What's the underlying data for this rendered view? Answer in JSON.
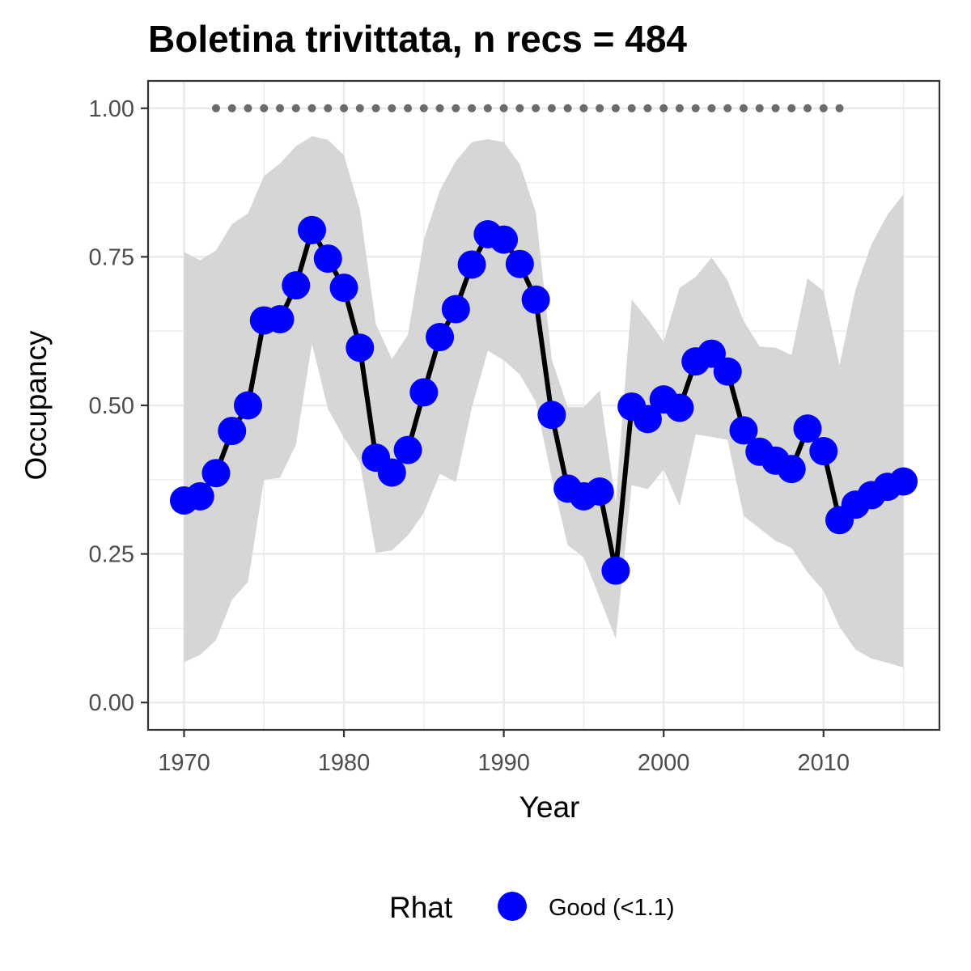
{
  "chart_data": {
    "type": "line",
    "title": "Boletina trivittata, n recs = 484",
    "xlabel": "Year",
    "ylabel": "Occupancy",
    "xlim": [
      1967.8,
      1917.0
    ],
    "ylim": [
      -0.046,
      1.046
    ],
    "x_ticks": [
      1970,
      1980,
      1990,
      2000,
      2010
    ],
    "x_tick_labels": [
      "1970",
      "1980",
      "1990",
      "2000",
      "2010"
    ],
    "y_ticks": [
      0,
      0.25,
      0.5,
      0.75,
      1.0
    ],
    "y_tick_labels": [
      "0.00",
      "0.25",
      "0.50",
      "0.75",
      "1.00"
    ],
    "grid": true,
    "colors": {
      "point": "#0000ff",
      "line": "#000000",
      "ribbon": "#d6d6d6",
      "record_dots": "#6b6b6b",
      "panel_border": "#333333",
      "grid": "#ebebeb"
    },
    "series": [
      {
        "x": [
          1970,
          1971,
          1972,
          1973,
          1974,
          1975,
          1976,
          1977,
          1978,
          1979,
          1980,
          1981,
          1982,
          1983,
          1984,
          1985,
          1986,
          1987,
          1988,
          1989,
          1990,
          1991,
          1992,
          1993,
          1994,
          1995,
          1996,
          1997,
          1998,
          1999,
          2000,
          2001,
          2002,
          2003,
          2004,
          2005,
          2006,
          2007,
          2008,
          2009,
          2010,
          2011,
          2012,
          2013,
          2014,
          2015
        ],
        "y": [
          0.34,
          0.347,
          0.386,
          0.457,
          0.5,
          0.643,
          0.645,
          0.702,
          0.795,
          0.747,
          0.698,
          0.597,
          0.412,
          0.387,
          0.425,
          0.522,
          0.615,
          0.662,
          0.737,
          0.788,
          0.779,
          0.738,
          0.678,
          0.484,
          0.36,
          0.347,
          0.355,
          0.222,
          0.498,
          0.477,
          0.51,
          0.496,
          0.574,
          0.587,
          0.557,
          0.458,
          0.422,
          0.407,
          0.393,
          0.461,
          0.423,
          0.307,
          0.333,
          0.349,
          0.363,
          0.372
        ],
        "lower": [
          0.068,
          0.08,
          0.105,
          0.173,
          0.203,
          0.375,
          0.378,
          0.434,
          0.604,
          0.494,
          0.446,
          0.404,
          0.252,
          0.256,
          0.281,
          0.319,
          0.385,
          0.371,
          0.496,
          0.592,
          0.576,
          0.552,
          0.506,
          0.378,
          0.265,
          0.244,
          0.176,
          0.107,
          0.366,
          0.359,
          0.392,
          0.331,
          0.451,
          0.447,
          0.442,
          0.314,
          0.293,
          0.272,
          0.26,
          0.219,
          0.188,
          0.127,
          0.089,
          0.074,
          0.067,
          0.059
        ],
        "upper": [
          0.758,
          0.744,
          0.761,
          0.805,
          0.823,
          0.886,
          0.907,
          0.936,
          0.953,
          0.947,
          0.921,
          0.829,
          0.637,
          0.578,
          0.619,
          0.779,
          0.862,
          0.911,
          0.943,
          0.948,
          0.943,
          0.906,
          0.825,
          0.577,
          0.497,
          0.497,
          0.525,
          0.337,
          0.678,
          0.645,
          0.607,
          0.698,
          0.716,
          0.749,
          0.71,
          0.642,
          0.599,
          0.597,
          0.585,
          0.714,
          0.692,
          0.568,
          0.695,
          0.771,
          0.821,
          0.855
        ]
      }
    ],
    "record_years": [
      1972,
      1973,
      1974,
      1975,
      1976,
      1977,
      1978,
      1979,
      1980,
      1981,
      1982,
      1983,
      1984,
      1985,
      1986,
      1987,
      1988,
      1989,
      1990,
      1991,
      1992,
      1993,
      1994,
      1995,
      1996,
      1997,
      1998,
      1999,
      2000,
      2001,
      2002,
      2003,
      2004,
      2005,
      2006,
      2007,
      2008,
      2009,
      2010,
      2011
    ],
    "record_value": 1.0,
    "legend": {
      "title": "Rhat",
      "entries": [
        {
          "label": "Good (<1.1)",
          "color": "#0000ff"
        }
      ],
      "position": "bottom"
    }
  }
}
